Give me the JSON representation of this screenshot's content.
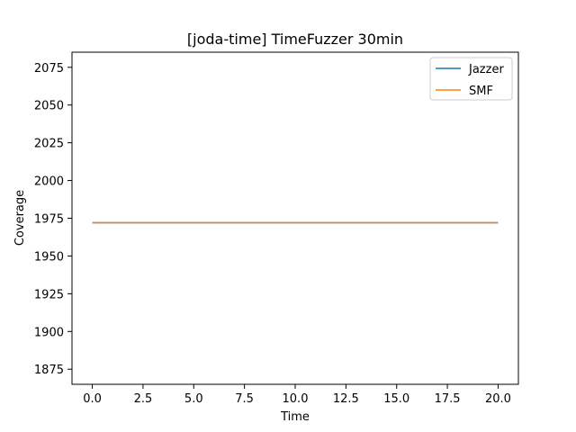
{
  "chart_data": {
    "type": "line",
    "title": "[joda-time] TimeFuzzer 30min",
    "xlabel": "Time",
    "ylabel": "Coverage",
    "xlim": [
      -1,
      21
    ],
    "ylim": [
      1865,
      2085
    ],
    "xticks": [
      0.0,
      2.5,
      5.0,
      7.5,
      10.0,
      12.5,
      15.0,
      17.5,
      20.0
    ],
    "xtick_labels": [
      "0.0",
      "2.5",
      "5.0",
      "7.5",
      "10.0",
      "12.5",
      "15.0",
      "17.5",
      "20.0"
    ],
    "yticks": [
      1875,
      1900,
      1925,
      1950,
      1975,
      2000,
      2025,
      2050,
      2075
    ],
    "ytick_labels": [
      "1875",
      "1900",
      "1925",
      "1950",
      "1975",
      "2000",
      "2025",
      "2050",
      "2075"
    ],
    "grid": false,
    "legend_position": "top-right",
    "series": [
      {
        "name": "Jazzer",
        "color": "#1f77b4",
        "x": [
          0,
          20
        ],
        "y": [
          1972,
          1972
        ]
      },
      {
        "name": "SMF",
        "color": "#ff7f0e",
        "x": [
          0,
          20
        ],
        "y": [
          1972,
          1972
        ]
      }
    ]
  }
}
